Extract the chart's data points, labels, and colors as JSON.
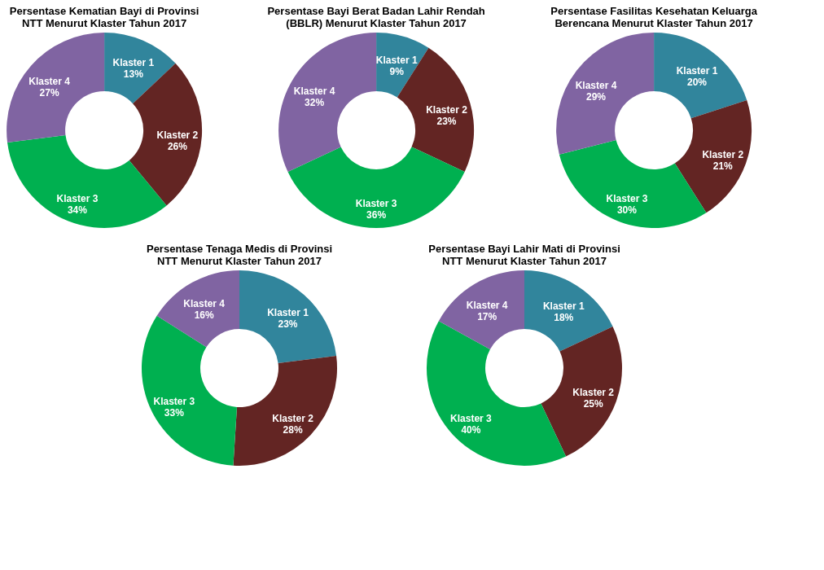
{
  "chart_data": [
    {
      "type": "donut",
      "title": "Persentase Kematian Bayi di Provinsi\nNTT Menurut Klaster Tahun 2017",
      "categories": [
        "Klaster 1",
        "Klaster 2",
        "Klaster 3",
        "Klaster 4"
      ],
      "values": [
        13,
        26,
        34,
        27
      ],
      "value_labels": [
        "13%",
        "26%",
        "34%",
        "27%"
      ],
      "colors": [
        "#31859c",
        "#632523",
        "#00b050",
        "#8064a2"
      ]
    },
    {
      "type": "donut",
      "title": "Persentase Bayi Berat Badan Lahir Rendah\n(BBLR)  Menurut Klaster Tahun 2017",
      "categories": [
        "Klaster 1",
        "Klaster 2",
        "Klaster 3",
        "Klaster 4"
      ],
      "values": [
        9,
        23,
        36,
        32
      ],
      "value_labels": [
        "9%",
        "23%",
        "36%",
        "32%"
      ],
      "colors": [
        "#31859c",
        "#632523",
        "#00b050",
        "#8064a2"
      ]
    },
    {
      "type": "donut",
      "title": "Persentase Fasilitas Kesehatan Keluarga\nBerencana  Menurut Klaster Tahun 2017",
      "categories": [
        "Klaster 1",
        "Klaster 2",
        "Klaster 3",
        "Klaster 4"
      ],
      "values": [
        20,
        21,
        30,
        29
      ],
      "value_labels": [
        "20%",
        "21%",
        "30%",
        "29%"
      ],
      "colors": [
        "#31859c",
        "#632523",
        "#00b050",
        "#8064a2"
      ]
    },
    {
      "type": "donut",
      "title": "Persentase Tenaga Medis di Provinsi\nNTT Menurut Klaster Tahun 2017",
      "categories": [
        "Klaster 1",
        "Klaster 2",
        "Klaster 3",
        "Klaster 4"
      ],
      "values": [
        23,
        28,
        33,
        16
      ],
      "value_labels": [
        "23%",
        "28%",
        "33%",
        "16%"
      ],
      "colors": [
        "#31859c",
        "#632523",
        "#00b050",
        "#8064a2"
      ]
    },
    {
      "type": "donut",
      "title": "Persentase Bayi Lahir Mati di Provinsi\nNTT Menurut Klaster Tahun 2017",
      "categories": [
        "Klaster 1",
        "Klaster 2",
        "Klaster 3",
        "Klaster 4"
      ],
      "values": [
        18,
        25,
        40,
        17
      ],
      "value_labels": [
        "18%",
        "25%",
        "40%",
        "17%"
      ],
      "colors": [
        "#31859c",
        "#632523",
        "#00b050",
        "#8064a2"
      ]
    }
  ]
}
